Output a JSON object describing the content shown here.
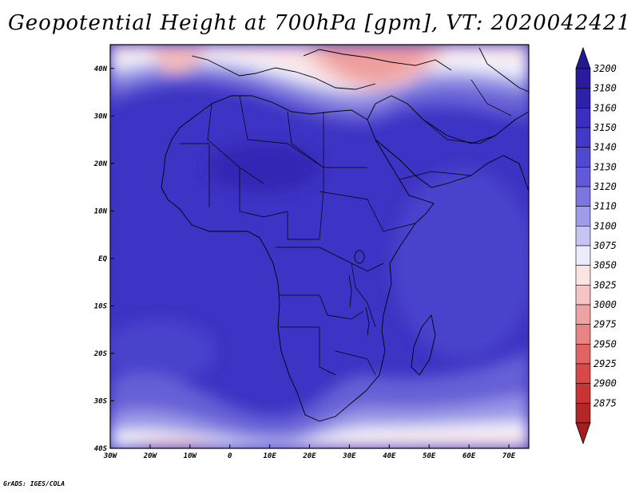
{
  "title": "Geopotential Height at 700hPa [gpm], VT: 2020042421",
  "footer": "GrADS: IGES/COLA",
  "map": {
    "lon_range": [
      -30,
      75
    ],
    "lat_range": [
      -40,
      45
    ],
    "lon_ticks": [
      {
        "value": -30,
        "label": "30W"
      },
      {
        "value": -20,
        "label": "20W"
      },
      {
        "value": -10,
        "label": "10W"
      },
      {
        "value": 0,
        "label": "0"
      },
      {
        "value": 10,
        "label": "10E"
      },
      {
        "value": 20,
        "label": "20E"
      },
      {
        "value": 30,
        "label": "30E"
      },
      {
        "value": 40,
        "label": "40E"
      },
      {
        "value": 50,
        "label": "50E"
      },
      {
        "value": 60,
        "label": "60E"
      },
      {
        "value": 70,
        "label": "70E"
      }
    ],
    "lat_ticks": [
      {
        "value": 40,
        "label": "40N"
      },
      {
        "value": 30,
        "label": "30N"
      },
      {
        "value": 20,
        "label": "20N"
      },
      {
        "value": 10,
        "label": "10N"
      },
      {
        "value": 0,
        "label": "EQ"
      },
      {
        "value": -10,
        "label": "10S"
      },
      {
        "value": -20,
        "label": "20S"
      },
      {
        "value": -30,
        "label": "30S"
      },
      {
        "value": -40,
        "label": "40S"
      }
    ]
  },
  "colorbar": {
    "levels": [
      {
        "label": "3200",
        "color": "#2a1a9c"
      },
      {
        "label": "3180",
        "color": "#2e20a8"
      },
      {
        "label": "3160",
        "color": "#3a2fc0"
      },
      {
        "label": "3150",
        "color": "#4338c8"
      },
      {
        "label": "3140",
        "color": "#5148d0"
      },
      {
        "label": "3130",
        "color": "#6159d8"
      },
      {
        "label": "3120",
        "color": "#7c76e0"
      },
      {
        "label": "3110",
        "color": "#a09ce8"
      },
      {
        "label": "3100",
        "color": "#c6c4f2"
      },
      {
        "label": "3075",
        "color": "#ecebfb"
      },
      {
        "label": "3050",
        "color": "#fbe4e4"
      },
      {
        "label": "3025",
        "color": "#f6c4c4"
      },
      {
        "label": "3000",
        "color": "#efa2a2"
      },
      {
        "label": "2975",
        "color": "#e88484"
      },
      {
        "label": "2950",
        "color": "#e06464"
      },
      {
        "label": "2925",
        "color": "#d84848"
      },
      {
        "label": "2900",
        "color": "#c83434"
      },
      {
        "label": "2875",
        "color": "#b52626"
      }
    ],
    "top_arrow_color": "#241890",
    "bottom_arrow_color": "#a61e1e"
  },
  "field_colors": {
    "deep": "#3226b4",
    "main": "#3d33c4",
    "mid": "#4a42cc",
    "light": "#6660d6",
    "pale": "#9a96e6",
    "paler": "#c6c4f2",
    "white": "#f2f2fc",
    "pink1": "#fbe0e0",
    "pink2": "#f4bcbc",
    "pink3": "#ee9e9e",
    "pink4": "#e68484"
  }
}
